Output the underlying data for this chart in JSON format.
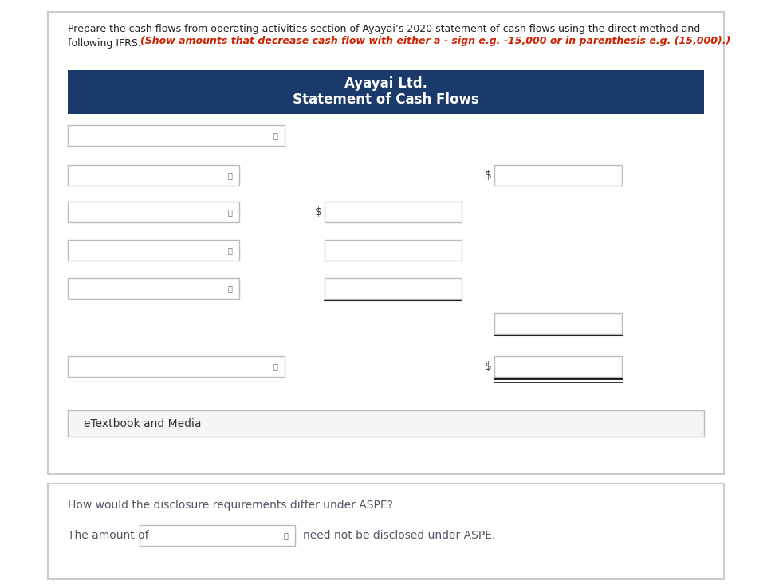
{
  "bg_color": "#ffffff",
  "outer_border_color": "#cccccc",
  "header_bg": "#1a3a6b",
  "header_text_color": "#ffffff",
  "header_line1": "Ayayai Ltd.",
  "header_line2": "Statement of Cash Flows",
  "instruction_black": "Prepare the cash flows from operating activities section of Ayayai’s 2020 statement of cash flows using the direct method and\nfollowing IFRS.",
  "instruction_red": "(Show amounts that decrease cash flow with either a - sign e.g. -15,000 or in parenthesis e.g. (15,000).)",
  "etextbook_text": "eTextbook and Media",
  "etextbook_bg": "#f5f5f5",
  "aspe_question": "How would the disclosure requirements differ under ASPE?",
  "aspe_text1": "The amount of",
  "aspe_text2": "need not be disclosed under ASPE.",
  "text_color": "#555566",
  "red_color": "#cc2200",
  "black_color": "#222222",
  "border_color": "#bbbbbb",
  "card_border": "#cccccc"
}
